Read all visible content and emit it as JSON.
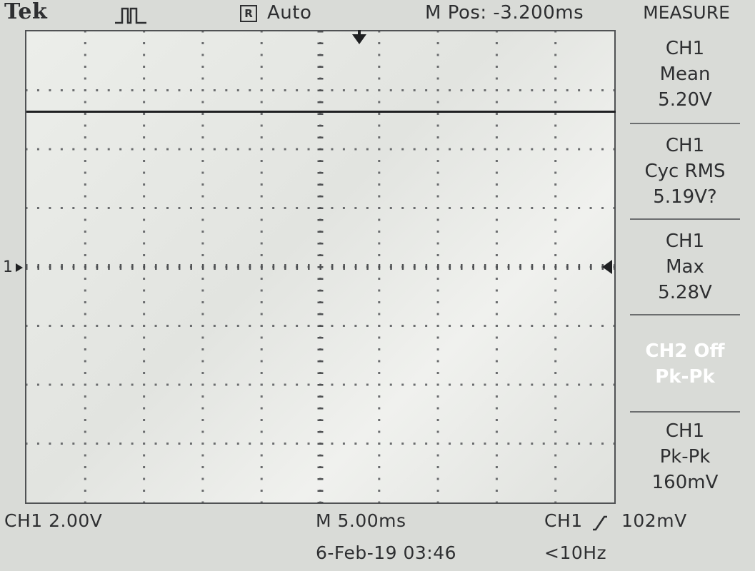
{
  "header": {
    "brand": "Tek",
    "trigger_icon": "pulse-waveform-icon",
    "run_badge": "R",
    "run_mode": "Auto",
    "m_pos": "M Pos: -3.200ms"
  },
  "graticule": {
    "divisions_x": 10,
    "divisions_y": 8,
    "ch1_ground_label": "1"
  },
  "trace": {
    "channel": "CH1",
    "level_volts": 5.2,
    "color": "#1f2022"
  },
  "menu": {
    "title": "MEASURE",
    "boxes": [
      {
        "line1": "CH1",
        "line2": "Mean",
        "line3": "5.20V"
      },
      {
        "line1": "CH1",
        "line2": "Cyc RMS",
        "line3": "5.19V?"
      },
      {
        "line1": "CH1",
        "line2": "Max",
        "line3": "5.28V"
      },
      {
        "line1": "CH2 Off",
        "line2": "Pk-Pk",
        "line3": ""
      },
      {
        "line1": "CH1",
        "line2": "Pk-Pk",
        "line3": "160mV"
      }
    ]
  },
  "footer": {
    "ch1_scale": "CH1  2.00V",
    "timebase": "M 5.00ms",
    "trigger_source": "CH1",
    "trigger_slope_icon": "rising-edge-icon",
    "trigger_level": "102mV",
    "date_time": "6-Feb-19 03:46",
    "frequency": "<10Hz"
  },
  "colors": {
    "background": "#d9dbd7",
    "text": "#2e2f31",
    "highlight_text": "#ffffff"
  }
}
